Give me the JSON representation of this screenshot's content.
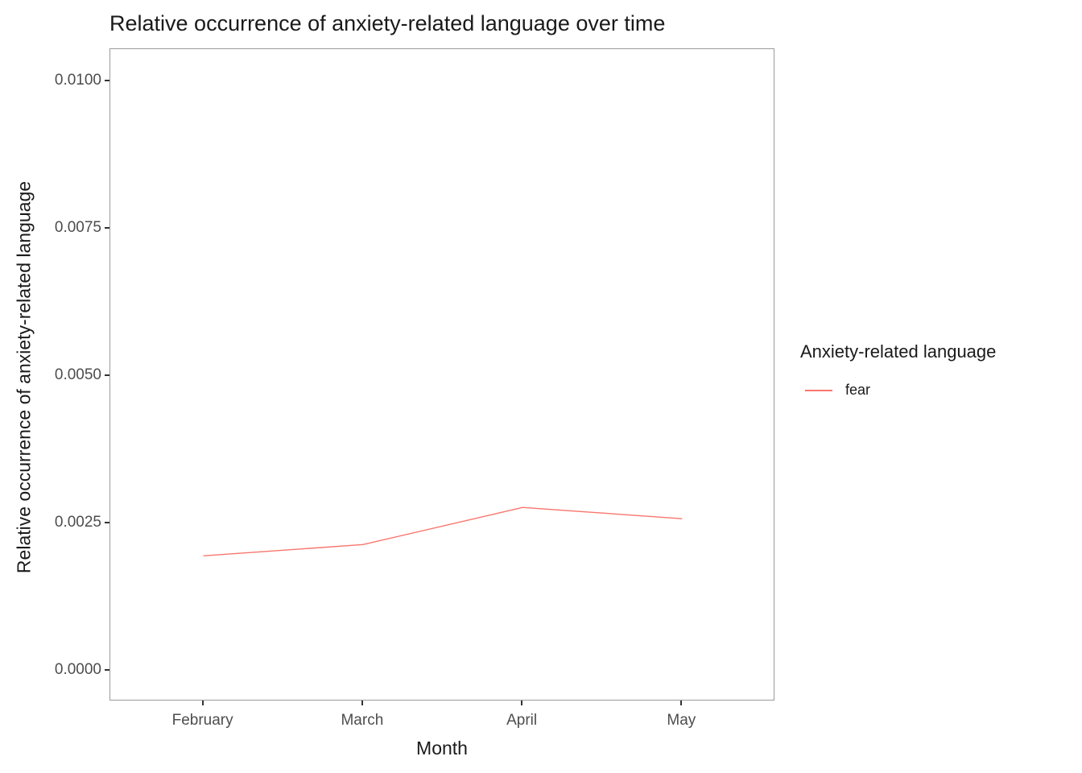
{
  "chart_data": {
    "type": "line",
    "title": "Relative occurrence of anxiety-related language over time",
    "xlabel": "Month",
    "ylabel": "Relative occurrence of anxiety-related language",
    "categories": [
      "February",
      "March",
      "April",
      "May"
    ],
    "series": [
      {
        "name": "fear",
        "color": "#F8766D",
        "values": [
          0.00195,
          0.00214,
          0.00277,
          0.00258
        ]
      }
    ],
    "ylim": [
      0.0,
      0.01
    ],
    "yticks": [
      0.0,
      0.0025,
      0.005,
      0.0075,
      0.01
    ],
    "ytick_labels": [
      "0.0000",
      "0.0025",
      "0.0050",
      "0.0075",
      "0.0100"
    ],
    "grid": false,
    "legend": {
      "title": "Anxiety-related language",
      "position": "right",
      "entries": [
        {
          "label": "fear",
          "color": "#F8766D"
        }
      ]
    }
  }
}
